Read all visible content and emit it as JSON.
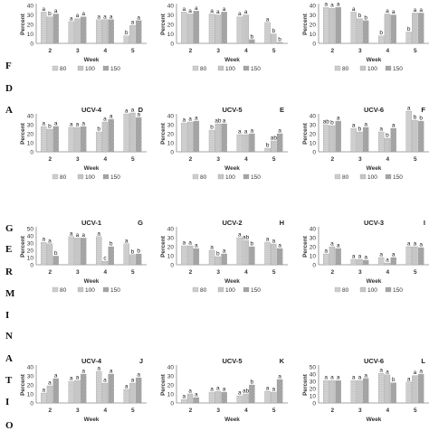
{
  "side_labels": [
    "F",
    "D",
    "A",
    "G",
    "E",
    "R",
    "M",
    "I",
    "N",
    "A",
    "T",
    "I",
    "O"
  ],
  "weeks": [
    "2",
    "3",
    "4",
    "5"
  ],
  "xlabel": "Week",
  "ylabel": "Percent",
  "legend": [
    "80",
    "100",
    "150"
  ],
  "colors": {
    "s80": "#d4d4d4",
    "s100": "#bdbdbd",
    "s150": "#a8a8a8",
    "axis": "#888888"
  },
  "chart_data": [
    {
      "type": "bar",
      "title": "",
      "letter": "",
      "categories": [
        "2",
        "3",
        "4",
        "5"
      ],
      "ylim": [
        0,
        40
      ],
      "yticks": [
        0,
        10,
        20,
        30,
        40
      ],
      "series": [
        {
          "name": "80",
          "values": [
            33,
            23,
            25,
            8
          ]
        },
        {
          "name": "100",
          "values": [
            28,
            26,
            25,
            19
          ]
        },
        {
          "name": "150",
          "values": [
            31,
            28,
            25,
            24
          ]
        }
      ],
      "annotations": [
        [
          "a",
          "b",
          "a"
        ],
        [
          "a",
          "a",
          "a"
        ],
        [
          "a",
          "a",
          "a"
        ],
        [
          "b",
          "a",
          "a"
        ]
      ]
    },
    {
      "type": "bar",
      "title": "",
      "letter": "",
      "categories": [
        "2",
        "3",
        "4",
        "5"
      ],
      "ylim": [
        0,
        40
      ],
      "yticks": [
        0,
        10,
        20,
        30,
        40
      ],
      "series": [
        {
          "name": "80",
          "values": [
            33,
            31,
            28,
            22
          ]
        },
        {
          "name": "100",
          "values": [
            31,
            30,
            30,
            10
          ]
        },
        {
          "name": "150",
          "values": [
            34,
            33,
            4,
            1
          ]
        }
      ],
      "annotations": [
        [
          "a",
          "a",
          "a"
        ],
        [
          "a",
          "a",
          "a"
        ],
        [
          "a",
          "a",
          "b"
        ],
        [
          "a",
          "b",
          "b"
        ]
      ]
    },
    {
      "type": "bar",
      "title": "",
      "letter": "",
      "categories": [
        "2",
        "3",
        "4",
        "5"
      ],
      "ylim": [
        0,
        40
      ],
      "yticks": [
        0,
        10,
        20,
        30,
        40
      ],
      "series": [
        {
          "name": "80",
          "values": [
            38,
            33,
            8,
            12
          ]
        },
        {
          "name": "100",
          "values": [
            37,
            26,
            31,
            32
          ]
        },
        {
          "name": "150",
          "values": [
            38,
            24,
            30,
            32
          ]
        }
      ],
      "annotations": [
        [
          "a",
          "a",
          "a"
        ],
        [
          "a",
          "b",
          "b"
        ],
        [
          "b",
          "a",
          "a"
        ],
        [
          "b",
          "a",
          "a"
        ]
      ]
    },
    {
      "type": "bar",
      "title": "UCV-4",
      "letter": "D",
      "categories": [
        "2",
        "3",
        "4",
        "5"
      ],
      "ylim": [
        0,
        40
      ],
      "yticks": [
        0,
        10,
        20,
        30,
        40
      ],
      "series": [
        {
          "name": "80",
          "values": [
            28,
            27,
            22,
            42
          ]
        },
        {
          "name": "100",
          "values": [
            25,
            27,
            33,
            43
          ]
        },
        {
          "name": "150",
          "values": [
            28,
            28,
            36,
            38
          ]
        }
      ],
      "annotations": [
        [
          "a",
          "b",
          "a"
        ],
        [
          "a",
          "a",
          "a"
        ],
        [
          "b",
          "a",
          "a"
        ],
        [
          "a",
          "a",
          "a"
        ]
      ]
    },
    {
      "type": "bar",
      "title": "UCV-5",
      "letter": "E",
      "categories": [
        "2",
        "3",
        "4",
        "5"
      ],
      "ylim": [
        0,
        40
      ],
      "yticks": [
        0,
        10,
        20,
        30,
        40
      ],
      "series": [
        {
          "name": "80",
          "values": [
            32,
            24,
            19,
            4
          ]
        },
        {
          "name": "100",
          "values": [
            33,
            31,
            19,
            12
          ]
        },
        {
          "name": "150",
          "values": [
            34,
            31,
            20,
            20
          ]
        }
      ],
      "annotations": [
        [
          "a",
          "a",
          "a"
        ],
        [
          "b",
          "ab",
          "a"
        ],
        [
          "a",
          "a",
          "a"
        ],
        [
          "b",
          "ab",
          "a"
        ]
      ]
    },
    {
      "type": "bar",
      "title": "UCV-6",
      "letter": "F",
      "categories": [
        "2",
        "3",
        "4",
        "5"
      ],
      "ylim": [
        0,
        40
      ],
      "yticks": [
        0,
        10,
        20,
        30,
        40
      ],
      "series": [
        {
          "name": "80",
          "values": [
            30,
            26,
            22,
            45
          ]
        },
        {
          "name": "100",
          "values": [
            29,
            22,
            15,
            35
          ]
        },
        {
          "name": "150",
          "values": [
            34,
            27,
            26,
            34
          ]
        }
      ],
      "annotations": [
        [
          "ab",
          "b",
          "a"
        ],
        [
          "a",
          "b",
          "a"
        ],
        [
          "a",
          "b",
          "a"
        ],
        [
          "a",
          "b",
          "b"
        ]
      ]
    },
    {
      "type": "bar",
      "title": "UCV-1",
      "letter": "G",
      "categories": [
        "2",
        "3",
        "4",
        "5"
      ],
      "ylim": [
        0,
        50
      ],
      "yticks": [
        0,
        10,
        20,
        30,
        40,
        50
      ],
      "series": [
        {
          "name": "80",
          "values": [
            31,
            39,
            39,
            29
          ]
        },
        {
          "name": "100",
          "values": [
            29,
            37,
            5,
            14
          ]
        },
        {
          "name": "150",
          "values": [
            12,
            37,
            25,
            15
          ]
        }
      ],
      "annotations": [
        [
          "a",
          "a",
          "b"
        ],
        [
          "a",
          "a",
          "a"
        ],
        [
          "a",
          "c",
          "b"
        ],
        [
          "a",
          "b",
          "b"
        ]
      ]
    },
    {
      "type": "bar",
      "title": "UCV-2",
      "letter": "H",
      "categories": [
        "2",
        "3",
        "4",
        "5"
      ],
      "ylim": [
        0,
        40
      ],
      "yticks": [
        0,
        10,
        20,
        30,
        40
      ],
      "series": [
        {
          "name": "80",
          "values": [
            21,
            16,
            30,
            25
          ]
        },
        {
          "name": "100",
          "values": [
            21,
            9,
            27,
            23
          ]
        },
        {
          "name": "150",
          "values": [
            18,
            12,
            20,
            18
          ]
        }
      ],
      "annotations": [
        [
          "a",
          "a",
          "a"
        ],
        [
          "a",
          "b",
          "a"
        ],
        [
          "a",
          "ab",
          "b"
        ],
        [
          "a",
          "a",
          "a"
        ]
      ]
    },
    {
      "type": "bar",
      "title": "UCV-3",
      "letter": "I",
      "categories": [
        "2",
        "3",
        "4",
        "5"
      ],
      "ylim": [
        0,
        40
      ],
      "yticks": [
        0,
        10,
        20,
        30,
        40
      ],
      "series": [
        {
          "name": "80",
          "values": [
            12,
            6,
            8,
            20
          ]
        },
        {
          "name": "100",
          "values": [
            20,
            6,
            2,
            20
          ]
        },
        {
          "name": "150",
          "values": [
            18,
            5,
            8,
            19
          ]
        }
      ],
      "annotations": [
        [
          "a",
          "a",
          "a"
        ],
        [
          "a",
          "a",
          "a"
        ],
        [
          "a",
          "a",
          "a"
        ],
        [
          "a",
          "a",
          "a"
        ]
      ]
    },
    {
      "type": "bar",
      "title": "UCV-4",
      "letter": "J",
      "categories": [
        "2",
        "3",
        "4",
        "5"
      ],
      "ylim": [
        0,
        40
      ],
      "yticks": [
        0,
        10,
        20,
        30,
        40
      ],
      "series": [
        {
          "name": "80",
          "values": [
            11,
            24,
            35,
            15
          ]
        },
        {
          "name": "100",
          "values": [
            19,
            25,
            22,
            22
          ]
        },
        {
          "name": "150",
          "values": [
            27,
            32,
            32,
            28
          ]
        }
      ],
      "annotations": [
        [
          "a",
          "a",
          "a"
        ],
        [
          "a",
          "a",
          "a"
        ],
        [
          "a",
          "a",
          "a"
        ],
        [
          "a",
          "a",
          "a"
        ]
      ]
    },
    {
      "type": "bar",
      "title": "UCV-5",
      "letter": "K",
      "categories": [
        "2",
        "3",
        "4",
        "5"
      ],
      "ylim": [
        0,
        40
      ],
      "yticks": [
        0,
        10,
        20,
        30,
        40
      ],
      "series": [
        {
          "name": "80",
          "values": [
            4,
            12,
            8,
            13
          ]
        },
        {
          "name": "100",
          "values": [
            10,
            13,
            10,
            12
          ]
        },
        {
          "name": "150",
          "values": [
            6,
            12,
            20,
            26
          ]
        }
      ],
      "annotations": [
        [
          "a",
          "a",
          "a"
        ],
        [
          "a",
          "a",
          "a"
        ],
        [
          "a",
          "ab",
          "b"
        ],
        [
          "a",
          "a",
          "a"
        ]
      ]
    },
    {
      "type": "bar",
      "title": "UCV-6",
      "letter": "L",
      "categories": [
        "2",
        "3",
        "4",
        "5"
      ],
      "ylim": [
        0,
        50
      ],
      "yticks": [
        0,
        10,
        20,
        30,
        40,
        50
      ],
      "series": [
        {
          "name": "80",
          "values": [
            31,
            31,
            41,
            29
          ]
        },
        {
          "name": "100",
          "values": [
            31,
            31,
            39,
            38
          ]
        },
        {
          "name": "150",
          "values": [
            31,
            34,
            28,
            40
          ]
        }
      ],
      "annotations": [
        [
          "a",
          "a",
          "a"
        ],
        [
          "a",
          "a",
          "a"
        ],
        [
          "a",
          "a",
          "b"
        ],
        [
          "a",
          "a",
          "a"
        ]
      ]
    }
  ]
}
